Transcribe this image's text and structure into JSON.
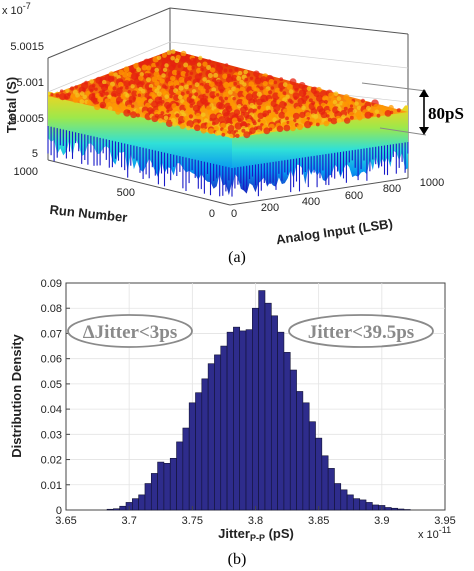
{
  "chart_data": [
    {
      "type": "surface",
      "panel_caption": "(a)",
      "zlabel": "Ttotal (S)",
      "z_exponent": "x 10",
      "z_exponent_power": "-7",
      "z_ticks": [
        "5",
        "5.0005",
        "5.001",
        "5.0015"
      ],
      "z_tick_values": [
        5.0,
        5.0005,
        5.001,
        5.0015
      ],
      "xlabel": "Analog Input (LSB)",
      "x_ticks": [
        "0",
        "200",
        "400",
        "600",
        "800",
        "1000"
      ],
      "ylabel": "Run Number",
      "y_ticks": [
        "0",
        "500",
        "1000"
      ],
      "surface": {
        "x_range": [
          0,
          1000
        ],
        "y_range": [
          0,
          1000
        ],
        "z_mean": 5.0008,
        "z_peak": 5.0012,
        "z_trough": 5.0
      },
      "annotation": "80pS",
      "colormap": [
        "#1818c8",
        "#00b4ff",
        "#3cf0c8",
        "#f0f020",
        "#ff9a00",
        "#e62010"
      ]
    },
    {
      "type": "bar",
      "panel_caption": "(b)",
      "xlabel_main": "Jitter",
      "xlabel_sub": "P-P",
      "xlabel_unit": " (pS)",
      "ylabel": "Distribution Density",
      "x_exponent": "x 10",
      "x_exponent_power": "-11",
      "xlim": [
        3.65,
        3.95
      ],
      "ylim": [
        0,
        0.09
      ],
      "x_ticks": [
        "3.65",
        "3.7",
        "3.75",
        "3.8",
        "3.85",
        "3.9",
        "3.95"
      ],
      "y_ticks": [
        "0",
        "0.01",
        "0.02",
        "0.03",
        "0.04",
        "0.05",
        "0.06",
        "0.07",
        "0.08",
        "0.09"
      ],
      "bin_width": 0.005,
      "x": [
        3.685,
        3.69,
        3.695,
        3.7,
        3.705,
        3.71,
        3.715,
        3.72,
        3.725,
        3.73,
        3.735,
        3.74,
        3.745,
        3.75,
        3.755,
        3.76,
        3.765,
        3.77,
        3.775,
        3.78,
        3.785,
        3.79,
        3.795,
        3.8,
        3.805,
        3.81,
        3.815,
        3.82,
        3.825,
        3.83,
        3.835,
        3.84,
        3.845,
        3.85,
        3.855,
        3.86,
        3.865,
        3.87,
        3.875,
        3.88,
        3.885,
        3.89,
        3.895,
        3.9,
        3.905,
        3.91,
        3.915,
        3.92
      ],
      "values": [
        0.0003,
        0.0005,
        0.0015,
        0.003,
        0.0045,
        0.006,
        0.0105,
        0.0145,
        0.019,
        0.0185,
        0.0205,
        0.027,
        0.0325,
        0.0425,
        0.0465,
        0.052,
        0.058,
        0.0615,
        0.065,
        0.0705,
        0.0725,
        0.071,
        0.0715,
        0.08,
        0.087,
        0.082,
        0.077,
        0.0705,
        0.0625,
        0.0555,
        0.047,
        0.0425,
        0.035,
        0.0285,
        0.0215,
        0.0165,
        0.0105,
        0.008,
        0.006,
        0.0045,
        0.004,
        0.003,
        0.002,
        0.0018,
        0.001,
        0.0007,
        0.0004,
        0.0002
      ],
      "bar_color": "#2e2c8c",
      "annotations": [
        "ΔJitter<3ps",
        "Jitter<39.5ps"
      ]
    }
  ]
}
